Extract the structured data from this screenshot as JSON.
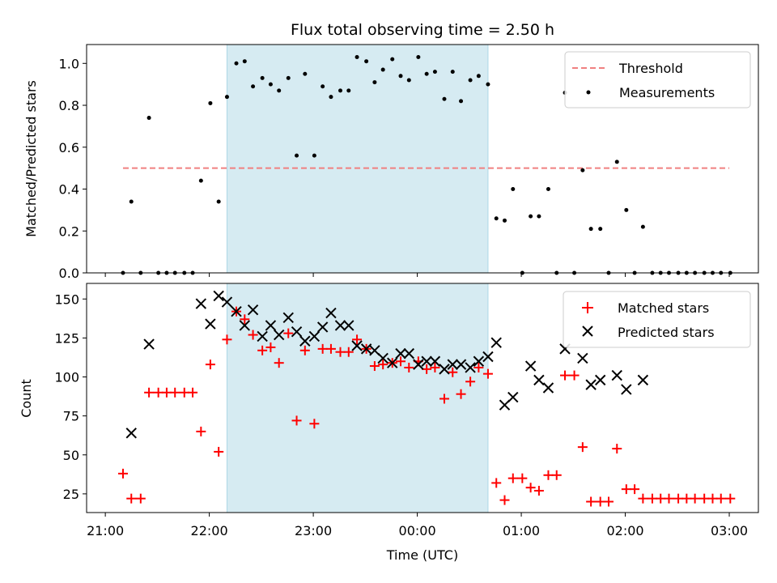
{
  "chart_data": [
    {
      "type": "scatter",
      "title": "Flux total observing time = 2.50 h",
      "xlabel": "",
      "ylabel": "Matched/Predicted stars",
      "ylim": [
        0,
        1.09
      ],
      "yticks": [
        0.0,
        0.2,
        0.4,
        0.6,
        0.8,
        1.0
      ],
      "ytick_labels": [
        "0.0",
        "0.2",
        "0.4",
        "0.6",
        "0.8",
        "1.0"
      ],
      "x_units": "hours since 21:00 UTC",
      "xlim": [
        -0.18,
        6.28
      ],
      "highlight_span": [
        1.17,
        3.68
      ],
      "highlight_color": "#add8e6",
      "threshold": {
        "name": "Threshold",
        "y": 0.5,
        "x": [
          0.17,
          6.0
        ],
        "color": "#f08080"
      },
      "legend_position": "top-right",
      "series": [
        {
          "name": "Measurements",
          "color": "#000000",
          "x": [
            0.17,
            0.25,
            0.34,
            0.42,
            0.51,
            0.59,
            0.67,
            0.76,
            0.84,
            0.92,
            1.01,
            1.09,
            1.17,
            1.26,
            1.34,
            1.42,
            1.51,
            1.59,
            1.67,
            1.76,
            1.84,
            1.92,
            2.01,
            2.09,
            2.17,
            2.26,
            2.34,
            2.42,
            2.51,
            2.59,
            2.67,
            2.76,
            2.84,
            2.92,
            3.01,
            3.09,
            3.17,
            3.26,
            3.34,
            3.42,
            3.51,
            3.59,
            3.68,
            3.76,
            3.84,
            3.92,
            4.01,
            4.09,
            4.17,
            4.26,
            4.34,
            4.42,
            4.51,
            4.59,
            4.67,
            4.76,
            4.84,
            4.92,
            5.01,
            5.09,
            5.17,
            5.26,
            5.34,
            5.42,
            5.51,
            5.59,
            5.67,
            5.76,
            5.84,
            5.92,
            6.01
          ],
          "y": [
            0.0,
            0.34,
            0.0,
            0.74,
            0.0,
            0.0,
            0.0,
            0.0,
            0.0,
            0.44,
            0.81,
            0.34,
            0.84,
            1.0,
            1.01,
            0.89,
            0.93,
            0.9,
            0.87,
            0.93,
            0.56,
            0.95,
            0.56,
            0.89,
            0.84,
            0.87,
            0.87,
            1.03,
            1.01,
            0.91,
            0.97,
            1.02,
            0.94,
            0.92,
            1.03,
            0.95,
            0.96,
            0.83,
            0.96,
            0.82,
            0.92,
            0.94,
            0.9,
            0.26,
            0.25,
            0.4,
            0.0,
            0.27,
            0.27,
            0.4,
            0.0,
            0.86,
            0.0,
            0.49,
            0.21,
            0.21,
            0.0,
            0.53,
            0.3,
            0.0,
            0.22,
            0.0,
            0.0,
            0.0,
            0.0,
            0.0,
            0.0,
            0.0,
            0.0,
            0.0,
            0.0
          ]
        }
      ]
    },
    {
      "type": "scatter",
      "title": "",
      "xlabel": "Time (UTC)",
      "ylabel": "Count",
      "ylim": [
        13,
        160
      ],
      "yticks": [
        25,
        50,
        75,
        100,
        125,
        150
      ],
      "ytick_labels": [
        "25",
        "50",
        "75",
        "100",
        "125",
        "150"
      ],
      "x_units": "hours since 21:00 UTC",
      "xlim": [
        -0.18,
        6.28
      ],
      "xticks": [
        0,
        1,
        2,
        3,
        4,
        5,
        6
      ],
      "xtick_labels": [
        "21:00",
        "22:00",
        "23:00",
        "00:00",
        "01:00",
        "02:00",
        "03:00"
      ],
      "highlight_span": [
        1.17,
        3.68
      ],
      "highlight_color": "#add8e6",
      "legend_position": "top-right",
      "series": [
        {
          "name": "Matched stars",
          "marker": "plus",
          "color": "#ff0000",
          "x": [
            0.17,
            0.25,
            0.34,
            0.42,
            0.51,
            0.59,
            0.67,
            0.76,
            0.84,
            0.92,
            1.01,
            1.09,
            1.17,
            1.26,
            1.34,
            1.42,
            1.51,
            1.59,
            1.67,
            1.76,
            1.84,
            1.92,
            2.01,
            2.09,
            2.17,
            2.26,
            2.34,
            2.42,
            2.51,
            2.59,
            2.67,
            2.76,
            2.84,
            2.92,
            3.01,
            3.09,
            3.17,
            3.26,
            3.34,
            3.42,
            3.51,
            3.59,
            3.68,
            3.76,
            3.84,
            3.92,
            4.01,
            4.09,
            4.17,
            4.26,
            4.34,
            4.42,
            4.51,
            4.59,
            4.67,
            4.76,
            4.84,
            4.92,
            5.01,
            5.09,
            5.17,
            5.26,
            5.34,
            5.42,
            5.51,
            5.59,
            5.67,
            5.76,
            5.84,
            5.92,
            6.01
          ],
          "y": [
            38,
            22,
            22,
            90,
            90,
            90,
            90,
            90,
            90,
            65,
            108,
            52,
            124,
            142,
            137,
            127,
            117,
            119,
            109,
            128,
            72,
            117,
            70,
            118,
            118,
            116,
            116,
            124,
            118,
            107,
            108,
            109,
            110,
            106,
            110,
            105,
            106,
            86,
            103,
            89,
            97,
            106,
            102,
            32,
            21,
            35,
            35,
            29,
            27,
            37,
            37,
            101,
            101,
            55,
            20,
            20,
            20,
            54,
            28,
            28,
            22,
            22,
            22,
            22,
            22,
            22,
            22,
            22,
            22,
            22,
            22
          ]
        },
        {
          "name": "Predicted stars",
          "marker": "x",
          "color": "#000000",
          "x": [
            0.25,
            0.42,
            0.92,
            1.01,
            1.09,
            1.17,
            1.26,
            1.34,
            1.42,
            1.51,
            1.59,
            1.67,
            1.76,
            1.84,
            1.92,
            2.01,
            2.09,
            2.17,
            2.26,
            2.34,
            2.42,
            2.51,
            2.59,
            2.67,
            2.76,
            2.84,
            2.92,
            3.01,
            3.09,
            3.17,
            3.26,
            3.34,
            3.42,
            3.51,
            3.59,
            3.68,
            3.76,
            3.84,
            3.92,
            4.09,
            4.17,
            4.26,
            4.42,
            4.59,
            4.67,
            4.76,
            4.92,
            5.01,
            5.17
          ],
          "y": [
            64,
            121,
            147,
            134,
            152,
            148,
            142,
            133,
            143,
            126,
            133,
            127,
            138,
            129,
            123,
            126,
            132,
            141,
            133,
            133,
            120,
            118,
            117,
            112,
            109,
            115,
            115,
            108,
            110,
            110,
            105,
            108,
            108,
            106,
            110,
            113,
            122,
            82,
            87,
            107,
            98,
            93,
            118,
            112,
            95,
            98,
            101,
            92,
            98
          ]
        }
      ]
    }
  ]
}
